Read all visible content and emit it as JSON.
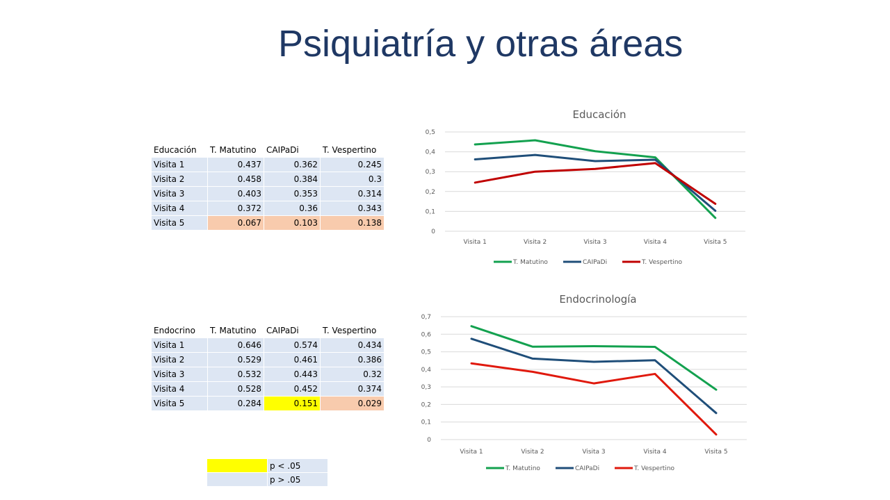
{
  "title": "Psiquiatría y otras áreas",
  "tables": [
    {
      "headers": [
        "Educación",
        "T. Matutino",
        "CAIPaDi",
        "T. Vespertino"
      ],
      "rows": [
        [
          "Visita 1",
          "0.437",
          "0.362",
          "0.245"
        ],
        [
          "Visita 2",
          "0.458",
          "0.384",
          "0.3"
        ],
        [
          "Visita 3",
          "0.403",
          "0.353",
          "0.314"
        ],
        [
          "Visita 4",
          "0.372",
          "0.36",
          "0.343"
        ],
        [
          "Visita 5",
          "0.067",
          "0.103",
          "0.138"
        ]
      ],
      "highlights": {
        "4": [
          "sig",
          "sig",
          "sig"
        ]
      }
    },
    {
      "headers": [
        "Endocrino",
        "T. Matutino",
        "CAIPaDi",
        "T. Vespertino"
      ],
      "rows": [
        [
          "Visita 1",
          "0.646",
          "0.574",
          "0.434"
        ],
        [
          "Visita 2",
          "0.529",
          "0.461",
          "0.386"
        ],
        [
          "Visita 3",
          "0.532",
          "0.443",
          "0.32"
        ],
        [
          "Visita 4",
          "0.528",
          "0.452",
          "0.374"
        ],
        [
          "Visita 5",
          "0.284",
          "0.151",
          "0.029"
        ]
      ],
      "highlights": {
        "4": [
          "none",
          "nsig",
          "sig"
        ]
      }
    }
  ],
  "legend_key": [
    {
      "color": "#ffff00",
      "label": "p < .05"
    },
    {
      "color": "#f8cbad",
      "label": "p > .05"
    }
  ],
  "chart_data": [
    {
      "type": "line",
      "title": "Educación",
      "categories": [
        "Visita 1",
        "Visita 2",
        "Visita 3",
        "Visita 4",
        "Visita 5"
      ],
      "ylim": [
        0,
        0.5
      ],
      "yticks": [
        "0",
        "0,1",
        "0,2",
        "0,3",
        "0,4",
        "0,5"
      ],
      "grid": true,
      "legend_position": "bottom",
      "series": [
        {
          "name": "T. Matutino",
          "color": "#13a14f",
          "values": [
            0.437,
            0.458,
            0.403,
            0.372,
            0.067
          ]
        },
        {
          "name": "CAIPaDi",
          "color": "#1f4e79",
          "values": [
            0.362,
            0.384,
            0.353,
            0.36,
            0.103
          ]
        },
        {
          "name": "T. Vespertino",
          "color": "#c00000",
          "values": [
            0.245,
            0.3,
            0.314,
            0.343,
            0.138
          ]
        }
      ]
    },
    {
      "type": "line",
      "title": "Endocrinología",
      "categories": [
        "Visita 1",
        "Visita 2",
        "Visita 3",
        "Visita 4",
        "Visita 5"
      ],
      "ylim": [
        0,
        0.7
      ],
      "yticks": [
        "0",
        "0,1",
        "0,2",
        "0,3",
        "0,4",
        "0,5",
        "0,6",
        "0,7"
      ],
      "grid": true,
      "legend_position": "bottom",
      "series": [
        {
          "name": "T. Matutino",
          "color": "#13a14f",
          "values": [
            0.646,
            0.529,
            0.532,
            0.528,
            0.284
          ]
        },
        {
          "name": "CAIPaDi",
          "color": "#1f4e79",
          "values": [
            0.574,
            0.461,
            0.443,
            0.452,
            0.151
          ]
        },
        {
          "name": "T. Vespertino",
          "color": "#e0190d",
          "values": [
            0.434,
            0.386,
            0.32,
            0.374,
            0.029
          ]
        }
      ]
    }
  ]
}
